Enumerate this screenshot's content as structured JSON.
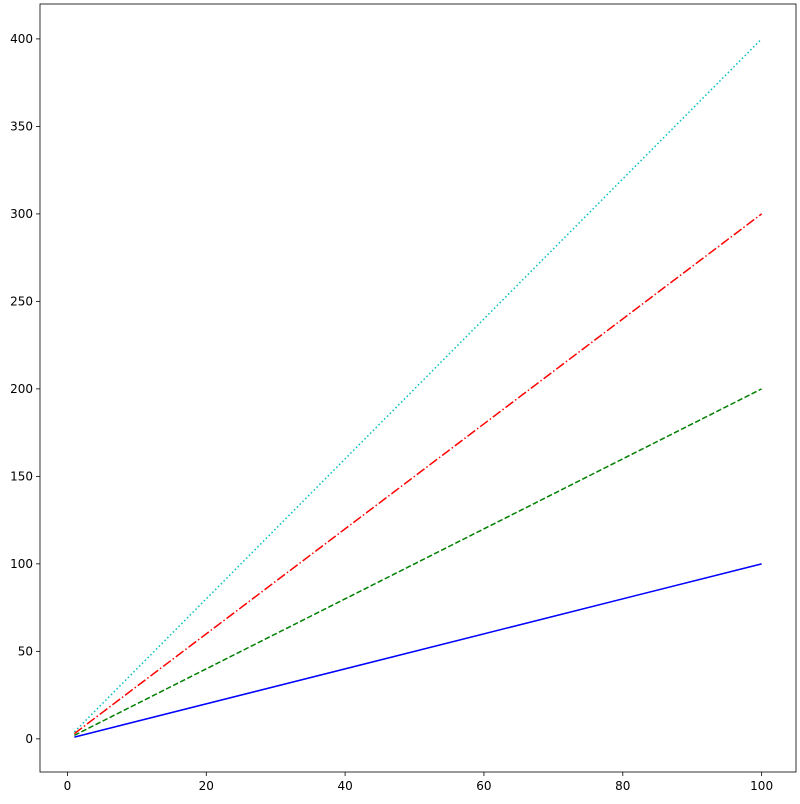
{
  "chart_data": {
    "type": "line",
    "x": [
      1,
      100
    ],
    "series": [
      {
        "color": "#0000ff",
        "dash": "solid",
        "values": [
          1,
          100
        ]
      },
      {
        "color": "#008000",
        "dash": "dashed",
        "values": [
          2,
          200
        ]
      },
      {
        "color": "#ff0000",
        "dash": "dashdot",
        "values": [
          3,
          300
        ]
      },
      {
        "color": "#00bfbf",
        "dash": "dotted",
        "values": [
          4,
          400
        ]
      }
    ],
    "xlim": [
      -3.95,
      104.95
    ],
    "xticks": [
      0,
      20,
      40,
      60,
      80,
      100
    ],
    "ylim": [
      -18.95,
      419.95
    ],
    "yticks": [
      0,
      50,
      100,
      150,
      200,
      250,
      300,
      350,
      400
    ],
    "grid": false
  }
}
